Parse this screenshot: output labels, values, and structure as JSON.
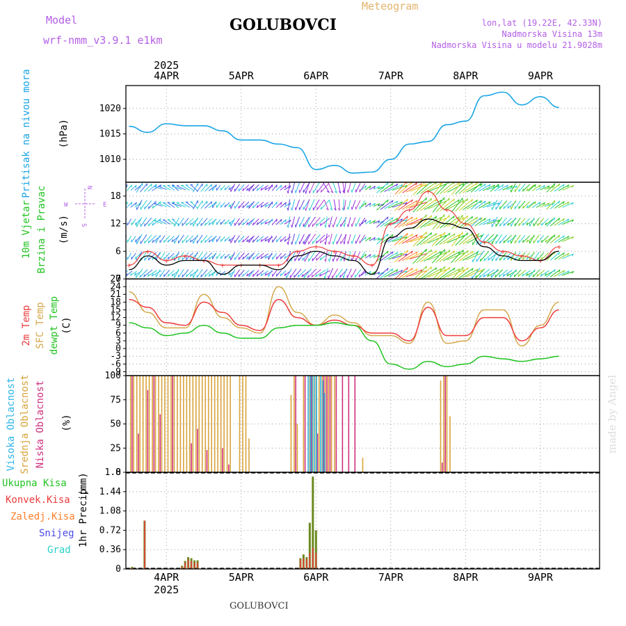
{
  "header": {
    "model_label": "Model",
    "model_name": "wrf-nmm_v3.9.1 e1km",
    "title": "GOLUBOVCI",
    "product": "Meteogram",
    "coords": "lon,lat (19.22E, 42.33N)",
    "altitude": "Nadmorska Visina 13m",
    "model_altitude": "Nadmorska Visina u modelu 21.9028m"
  },
  "footer": {
    "station": "GOLUBOVCI",
    "credit": "made by Angel"
  },
  "colors": {
    "pressure": "#1aa5e6",
    "temp": "#ee3b3b",
    "sfc": "#d4a84b",
    "dewpt": "#22c322",
    "high": "#2fb5e8",
    "mid": "#d9a33a",
    "low": "#d0307e",
    "total": "#22c322",
    "conv": "#ee3b3b",
    "frozen": "#ff7f2a",
    "snow": "#4a4ae8",
    "hail": "#2ad0c8",
    "purple": "#b35ee6"
  },
  "chart_data": [
    {
      "type": "line",
      "panel": "pressure",
      "ylabels": [
        "Pritisak na nivou mora",
        "(hPa)"
      ],
      "ylim": [
        1005.5,
        1024.5
      ],
      "yticks": [
        1010,
        1015,
        1020
      ],
      "grid": true,
      "x_year": "2025",
      "x_ticks": [
        "4APR",
        "5APR",
        "6APR",
        "7APR",
        "8APR",
        "9APR"
      ],
      "x_hours": [
        0,
        6,
        12,
        18,
        24,
        30,
        36,
        42,
        48,
        54,
        60,
        66,
        72,
        78,
        84,
        90,
        96,
        102,
        108,
        114,
        120,
        126,
        132,
        138
      ],
      "series": [
        {
          "values": [
            1016.5,
            1015.3,
            1017.0,
            1016.6,
            1016.6,
            1015.6,
            1013.8,
            1013.8,
            1013.0,
            1012.3,
            1008.0,
            1008.8,
            1007.3,
            1007.5,
            1010.0,
            1013.0,
            1013.5,
            1016.8,
            1017.5,
            1022.5,
            1023.2,
            1020.7,
            1022.3,
            1020.2
          ]
        }
      ]
    },
    {
      "type": "line",
      "panel": "wind",
      "ylabels": [
        "10m Vjetar",
        "Brzina i Pravac",
        "(m/s)"
      ],
      "compass": {
        "n": "N",
        "s": "S",
        "e": "E",
        "w": "W"
      },
      "ylim": [
        0,
        21
      ],
      "yticks": [
        0,
        6,
        12,
        18
      ],
      "grid": true,
      "series": [
        {
          "name": "speed",
          "values": [
            2,
            5,
            3,
            4,
            4,
            1,
            3,
            3,
            2,
            5,
            6,
            5,
            4,
            1,
            9,
            11,
            13,
            12,
            11,
            7,
            5,
            4,
            4,
            6
          ]
        },
        {
          "name": "gust",
          "values": [
            3,
            6,
            4,
            5,
            4,
            3,
            3,
            3,
            3,
            6,
            7,
            6,
            5,
            3,
            12,
            15,
            19,
            15,
            12,
            8,
            6,
            5,
            4,
            7
          ]
        }
      ],
      "direction_rows": [
        [
          40,
          45,
          300,
          300,
          40,
          220,
          220,
          230,
          45,
          200,
          210,
          160,
          200,
          60,
          60,
          55,
          55,
          50,
          50,
          60,
          60,
          220,
          60,
          55
        ],
        [
          45,
          220,
          300,
          300,
          40,
          220,
          220,
          230,
          45,
          200,
          210,
          170,
          200,
          60,
          60,
          60,
          55,
          50,
          50,
          60,
          220,
          220,
          60,
          55
        ],
        [
          210,
          220,
          300,
          220,
          220,
          220,
          220,
          230,
          45,
          200,
          220,
          200,
          200,
          60,
          60,
          60,
          55,
          50,
          50,
          60,
          220,
          220,
          220,
          55
        ],
        [
          210,
          220,
          220,
          220,
          220,
          220,
          220,
          230,
          220,
          200,
          220,
          200,
          200,
          60,
          60,
          60,
          55,
          55,
          50,
          220,
          220,
          220,
          220,
          55
        ],
        [
          210,
          220,
          220,
          220,
          220,
          220,
          220,
          230,
          220,
          210,
          220,
          200,
          200,
          60,
          60,
          60,
          55,
          55,
          55,
          220,
          220,
          220,
          220,
          55
        ],
        [
          230,
          230,
          220,
          220,
          220,
          230,
          220,
          230,
          220,
          220,
          230,
          210,
          210,
          60,
          60,
          60,
          55,
          55,
          55,
          230,
          230,
          230,
          230,
          60
        ]
      ]
    },
    {
      "type": "line",
      "panel": "temperature",
      "ylabels": [
        "2m Temp",
        "SFC Temp",
        "dewpt Temp",
        "(C)"
      ],
      "ylim": [
        -10.5,
        27
      ],
      "yticks": [
        -9,
        -6,
        -3,
        0,
        3,
        6,
        9,
        12,
        15,
        18,
        21,
        24,
        27
      ],
      "grid": true,
      "series": [
        {
          "name": "2m Temp",
          "values": [
            19,
            16,
            10,
            9,
            18,
            14,
            9,
            7,
            19,
            12,
            9,
            11,
            9,
            6,
            6,
            3,
            16,
            5,
            5,
            12,
            12,
            3,
            8,
            15
          ]
        },
        {
          "name": "SFC Temp",
          "values": [
            22,
            14,
            8,
            8,
            21,
            12,
            8,
            6,
            24,
            14,
            9,
            13,
            10,
            5,
            5,
            2,
            18,
            2,
            3,
            15,
            15,
            1,
            9,
            18
          ]
        },
        {
          "name": "dewpt Temp",
          "values": [
            10,
            8,
            5,
            6,
            9,
            6,
            4,
            4,
            8,
            9,
            9,
            10,
            9,
            3,
            -6,
            -8,
            -5,
            -7,
            -6,
            -3,
            -4,
            -5,
            -4,
            -3
          ]
        }
      ]
    },
    {
      "type": "bar",
      "panel": "cloud",
      "ylabels": [
        "Visoka Oblacnost",
        "Srednja Oblacnost",
        "Niska Oblacnost",
        "(%)"
      ],
      "ylim": [
        0,
        100
      ],
      "yticks": [
        0,
        25,
        50,
        75,
        100
      ],
      "grid": true,
      "series": [
        {
          "name": "Srednja Oblacnost",
          "x": [
            0.5,
            1.5,
            2.5,
            3.5,
            4.5,
            5.5,
            6.5,
            7.5,
            8.5,
            9.5,
            10.5,
            11.5,
            12.5,
            13.5,
            14.5,
            15.5,
            16.5,
            17.5,
            18.5,
            19.5,
            20.5,
            21.5,
            22.5,
            23.5,
            24.5,
            25.5,
            26.5,
            27.5,
            28.5,
            29.5,
            30.5,
            31.5,
            32.5,
            35.5,
            36.5,
            37.5,
            38.5,
            52,
            53,
            54,
            56,
            58,
            59,
            60,
            61,
            62,
            63,
            64,
            65,
            66,
            75,
            100,
            101,
            102,
            103
          ],
          "values": [
            100,
            100,
            100,
            100,
            100,
            100,
            100,
            100,
            100,
            100,
            100,
            100,
            100,
            100,
            100,
            100,
            100,
            100,
            100,
            100,
            100,
            100,
            100,
            100,
            100,
            100,
            100,
            100,
            100,
            100,
            100,
            100,
            100,
            100,
            100,
            100,
            35,
            80,
            100,
            50,
            100,
            100,
            100,
            100,
            100,
            100,
            100,
            100,
            100,
            100,
            15,
            95,
            100,
            100,
            58
          ]
        },
        {
          "name": "Niska Oblacnost",
          "x": [
            1,
            3,
            6,
            8,
            10,
            14,
            20,
            22,
            25,
            30,
            32,
            53.5,
            56.5,
            58.5,
            60.5,
            62.5,
            63.5,
            64.5,
            66.5,
            68.5,
            70.5,
            72.5,
            100.5,
            101.5
          ],
          "values": [
            100,
            40,
            85,
            100,
            60,
            100,
            30,
            45,
            23,
            25,
            8,
            100,
            100,
            100,
            40,
            100,
            100,
            100,
            100,
            100,
            100,
            100,
            10,
            100
          ]
        },
        {
          "name": "Visoka Oblacnost",
          "x": [
            57.5,
            58.2,
            58.8,
            59.5,
            60.2,
            61.5,
            62.2,
            62.8
          ],
          "values": [
            100,
            100,
            100,
            100,
            100,
            100,
            95,
            82
          ]
        }
      ]
    },
    {
      "type": "bar",
      "panel": "precip",
      "ylabels": [
        "1hr Precip",
        "(mm)"
      ],
      "legend_labels": [
        "Ukupna Kisa",
        "Konvek.Kisa",
        "Zaledj.Kisa",
        "Snijeg",
        "Grad"
      ],
      "ylim": [
        0,
        1.8
      ],
      "yticks": [
        0,
        0.36,
        0.72,
        1.08,
        1.44,
        1.8
      ],
      "grid": true,
      "series": [
        {
          "name": "Ukupna Kisa",
          "x": [
            1,
            5,
            17,
            18,
            19,
            20,
            21,
            22,
            55,
            56,
            57,
            58,
            59,
            60
          ],
          "values": [
            0.04,
            0.9,
            0.06,
            0.15,
            0.22,
            0.2,
            0.16,
            0.16,
            0.2,
            0.27,
            0.22,
            0.86,
            1.72,
            0.72
          ]
        },
        {
          "name": "Konvek.Kisa",
          "x": [
            1,
            5,
            17,
            18,
            19,
            20,
            21,
            22,
            55,
            56,
            57,
            58,
            59,
            60
          ],
          "values": [
            0.02,
            0.9,
            0.04,
            0.12,
            0.18,
            0.15,
            0.12,
            0.12,
            0.18,
            0.2,
            0.18,
            0.3,
            0.4,
            0.3
          ]
        }
      ]
    }
  ]
}
